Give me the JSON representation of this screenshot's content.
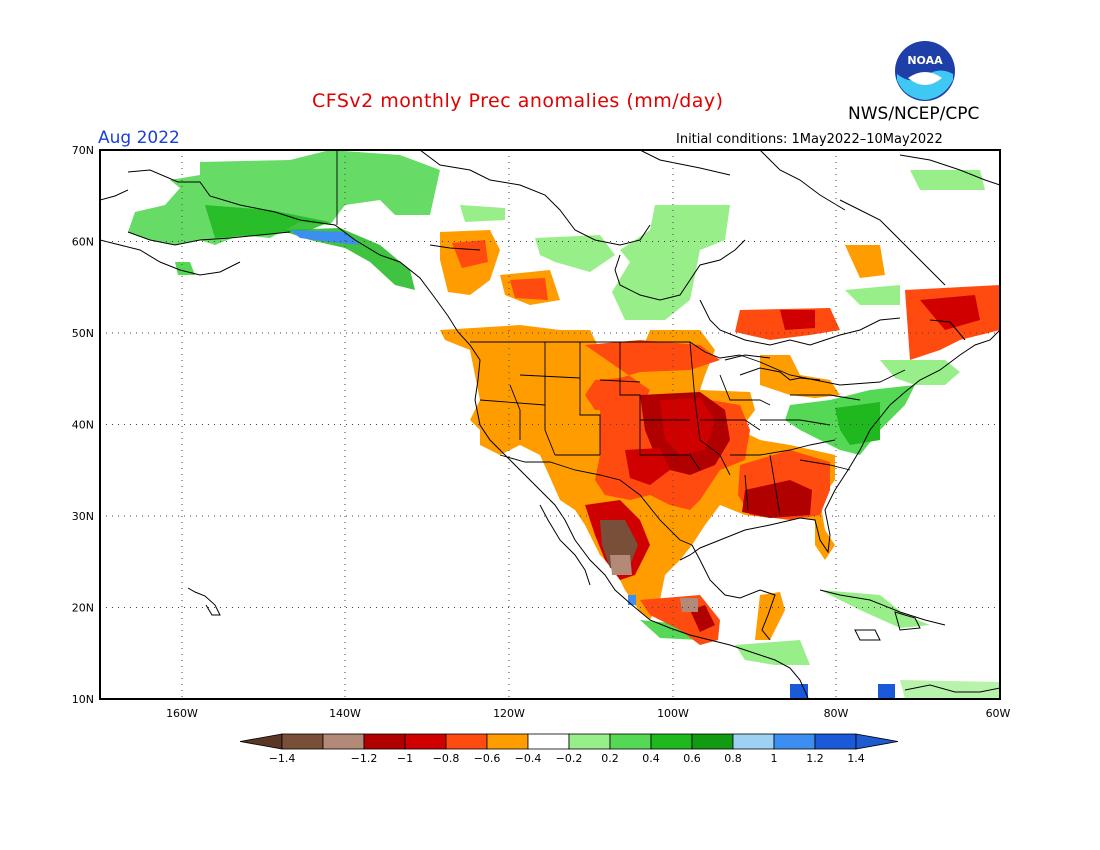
{
  "title": "CFSv2 monthly Prec anomalies (mm/day)",
  "agency": "NWS/NCEP/CPC",
  "logo_text": "NOAA",
  "month": "Aug 2022",
  "initial_conditions": "Initial conditions: 1May2022–10May2022",
  "map": {
    "lon_range": [
      -170,
      -60
    ],
    "lat_range": [
      10,
      70
    ],
    "lat_labels": [
      "70N",
      "60N",
      "50N",
      "40N",
      "30N",
      "20N",
      "10N"
    ],
    "lon_labels": [
      "160W",
      "140W",
      "120W",
      "100W",
      "80W",
      "60W"
    ],
    "grid": "dotted"
  },
  "colorbar": {
    "tick_labels": [
      "−1.4",
      "−1.2",
      "−1",
      "−0.8",
      "−0.6",
      "−0.4",
      "−0.2",
      "0.2",
      "0.4",
      "0.6",
      "0.8",
      "1",
      "1.2",
      "1.4"
    ],
    "colors": [
      "#7a4f3a",
      "#b38a77",
      "#b00000",
      "#d00000",
      "#ff4a10",
      "#ff9d00",
      "#ffffff",
      "#98ee88",
      "#55d855",
      "#1fb81f",
      "#129a12",
      "#9ed2f5",
      "#3c8ff0",
      "#1a5ad8"
    ],
    "extend_low_color": "#5a3626",
    "extend_high_color": "#1e5ad0"
  },
  "colors": {
    "dry_strong": "#b00000",
    "dry": "#ff9d00",
    "wet": "#55d855",
    "title": "#e00000",
    "month": "#1a3fd6"
  }
}
